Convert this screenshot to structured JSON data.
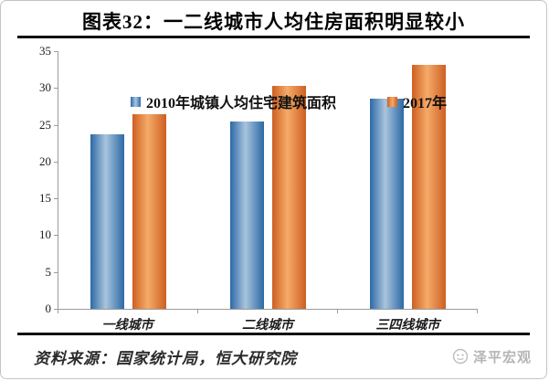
{
  "title": "图表32：一二线城市人均住房面积明显较小",
  "chart_data": {
    "type": "bar",
    "categories": [
      "一线城市",
      "二线城市",
      "三四线城市"
    ],
    "series": [
      {
        "name": "2010年城镇人均住宅建筑面积",
        "values": [
          23.7,
          25.5,
          28.5
        ],
        "color_edge": "#2c69a5",
        "color_mid": "#a9c4de"
      },
      {
        "name": "2017年",
        "values": [
          26.5,
          30.3,
          33.2
        ],
        "color_edge": "#cd5f22",
        "color_mid": "#f5ab69"
      }
    ],
    "ylim": [
      0,
      35
    ],
    "yticks": [
      0,
      5,
      10,
      15,
      20,
      25,
      30,
      35
    ],
    "xlabel": "",
    "ylabel": "",
    "grid": false,
    "legend_position": "top"
  },
  "footer": {
    "source": "资料来源：国家统计局，恒大研究院",
    "watermark": "泽平宏观"
  }
}
